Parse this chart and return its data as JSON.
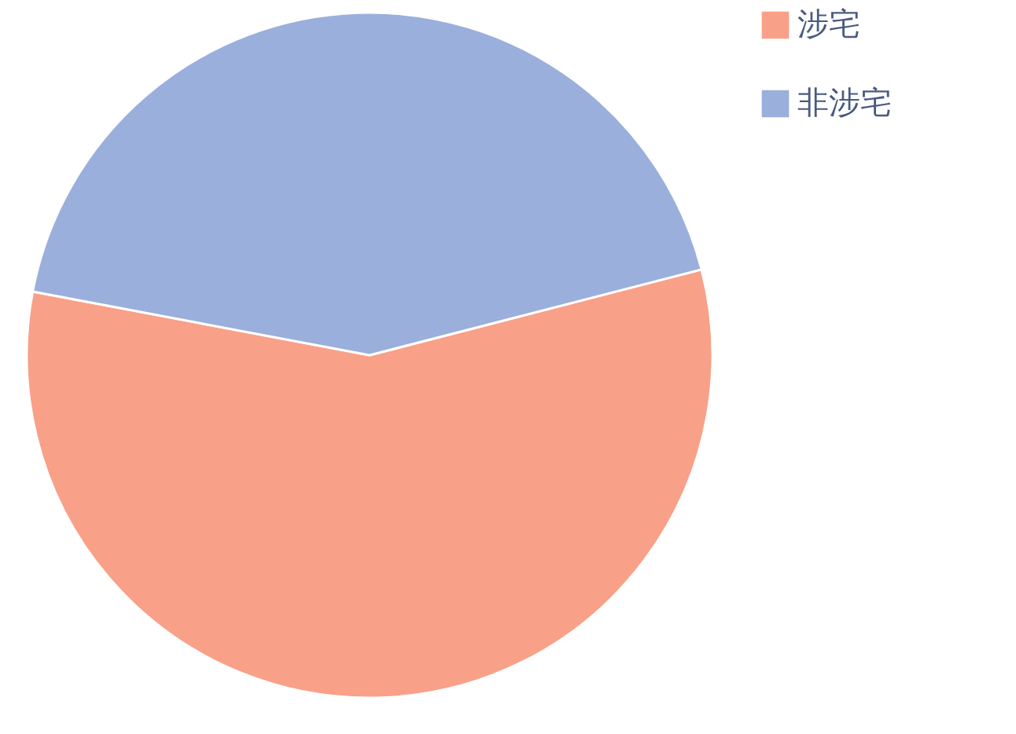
{
  "chart_data": {
    "type": "pie",
    "categories": [
      "涉宅",
      "非涉宅"
    ],
    "values": [
      57,
      43
    ],
    "colors": [
      "#f9a088",
      "#9aafdb"
    ],
    "legend": "right"
  }
}
